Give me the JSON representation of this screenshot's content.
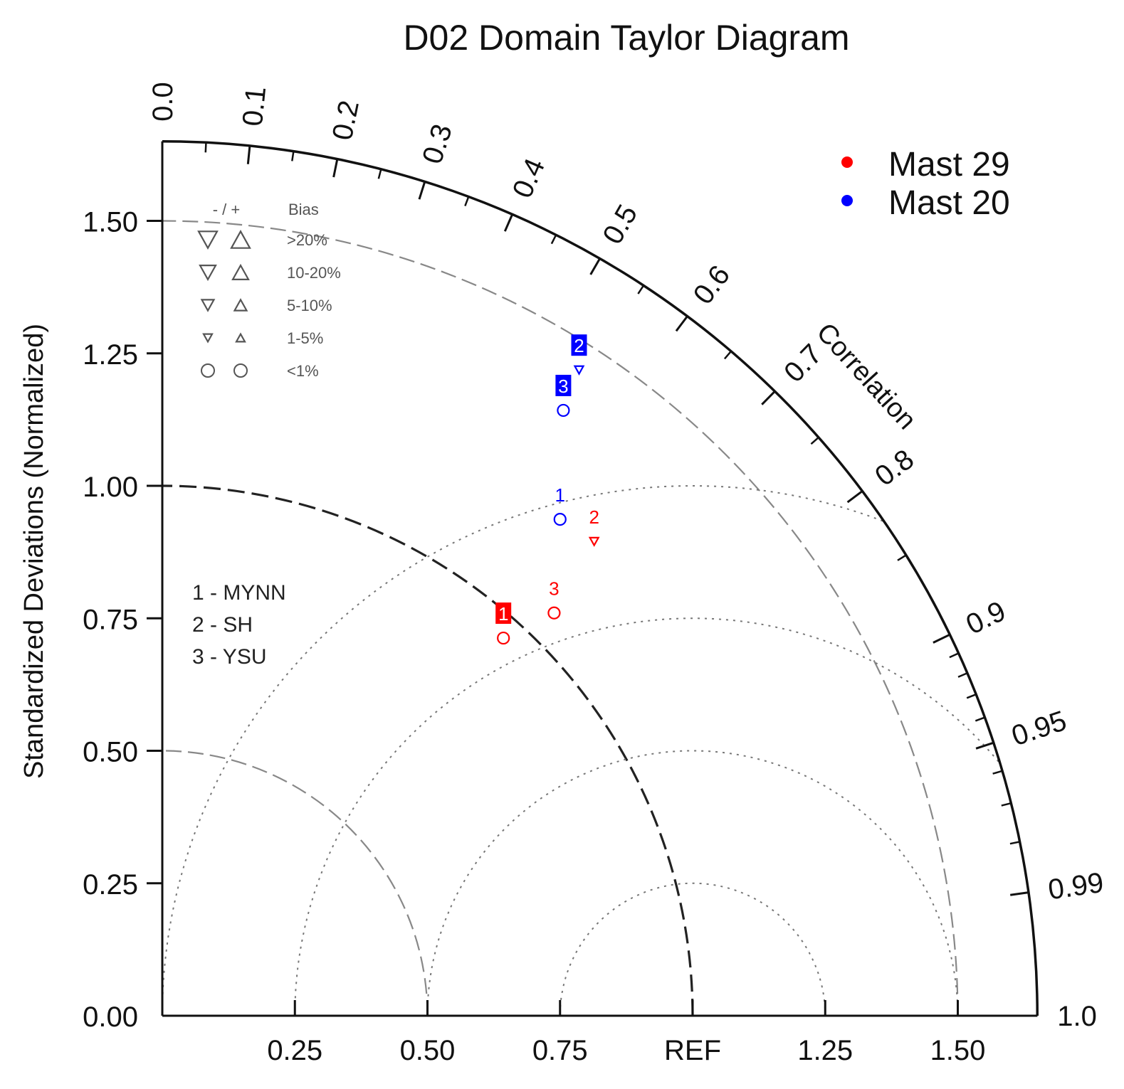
{
  "chart_data": {
    "type": "taylor",
    "title": "D02 Domain Taylor Diagram",
    "ylabel": "Standardized Deviations (Normalized)",
    "correlation_label": "Correlation",
    "std_range": [
      0,
      1.65
    ],
    "std_ticks": [
      {
        "value": 0.25,
        "label": "0.25"
      },
      {
        "value": 0.5,
        "label": "0.50"
      },
      {
        "value": 0.75,
        "label": "0.75"
      },
      {
        "value": 1.0,
        "label": "1.00"
      },
      {
        "value": 1.25,
        "label": "1.25"
      },
      {
        "value": 1.5,
        "label": "1.50"
      }
    ],
    "y_zero_label": "0.00",
    "x_ticks": [
      {
        "value": 0.25,
        "label": "0.25"
      },
      {
        "value": 0.5,
        "label": "0.50"
      },
      {
        "value": 0.75,
        "label": "0.75"
      },
      {
        "value": 1.0,
        "label": "REF"
      },
      {
        "value": 1.25,
        "label": "1.25"
      },
      {
        "value": 1.5,
        "label": "1.50"
      }
    ],
    "corr_major": [
      {
        "value": 0.0,
        "label": "0.0"
      },
      {
        "value": 0.1,
        "label": "0.1"
      },
      {
        "value": 0.2,
        "label": "0.2"
      },
      {
        "value": 0.3,
        "label": "0.3"
      },
      {
        "value": 0.4,
        "label": "0.4"
      },
      {
        "value": 0.5,
        "label": "0.5"
      },
      {
        "value": 0.6,
        "label": "0.6"
      },
      {
        "value": 0.7,
        "label": "0.7"
      },
      {
        "value": 0.8,
        "label": "0.8"
      },
      {
        "value": 0.9,
        "label": "0.9"
      },
      {
        "value": 0.95,
        "label": "0.95"
      },
      {
        "value": 0.99,
        "label": "0.99"
      },
      {
        "value": 1.0,
        "label": "1.0"
      }
    ],
    "corr_minor": [
      0.05,
      0.15,
      0.25,
      0.35,
      0.45,
      0.55,
      0.65,
      0.75,
      0.85,
      0.91,
      0.92,
      0.93,
      0.94,
      0.96,
      0.97,
      0.98
    ],
    "std_arcs_dashed": [
      0.5,
      1.5
    ],
    "std_arc_ref": 1.0,
    "rmsd_arcs": [
      0.25,
      0.5,
      0.75,
      1.0
    ],
    "series": [
      {
        "name": "Mast 29",
        "color": "#ff0000",
        "points": [
          {
            "label": "1",
            "std": 0.96,
            "corr": 0.67,
            "bias_marker": "circle",
            "label_style": "box"
          },
          {
            "label": "2",
            "std": 1.21,
            "corr": 0.673,
            "bias_marker": "down-triangle",
            "label_style": "text"
          },
          {
            "label": "3",
            "std": 1.06,
            "corr": 0.697,
            "bias_marker": "circle",
            "label_style": "text"
          }
        ]
      },
      {
        "name": "Mast 20",
        "color": "#0000ff",
        "points": [
          {
            "label": "1",
            "std": 1.2,
            "corr": 0.625,
            "bias_marker": "circle",
            "label_style": "text"
          },
          {
            "label": "2",
            "std": 1.45,
            "corr": 0.542,
            "bias_marker": "down-triangle",
            "label_style": "box"
          },
          {
            "label": "3",
            "std": 1.37,
            "corr": 0.552,
            "bias_marker": "circle",
            "label_style": "box"
          }
        ]
      }
    ],
    "legend": {
      "placement": "top-right",
      "items": [
        {
          "name": "Mast 29",
          "color": "#ff0000"
        },
        {
          "name": "Mast 20",
          "color": "#0000ff"
        }
      ]
    },
    "bias_legend": {
      "header_sign": "- / +",
      "header_title": "Bias",
      "rows": [
        {
          "label": ">20%",
          "marker": "triangle",
          "size": "xl"
        },
        {
          "label": "10-20%",
          "marker": "triangle",
          "size": "l"
        },
        {
          "label": "5-10%",
          "marker": "triangle",
          "size": "m"
        },
        {
          "label": "1-5%",
          "marker": "triangle",
          "size": "s"
        },
        {
          "label": "<1%",
          "marker": "circle",
          "size": "m"
        }
      ]
    },
    "model_legend": [
      "1 - MYNN",
      "2 - SH",
      "3 - YSU"
    ]
  }
}
